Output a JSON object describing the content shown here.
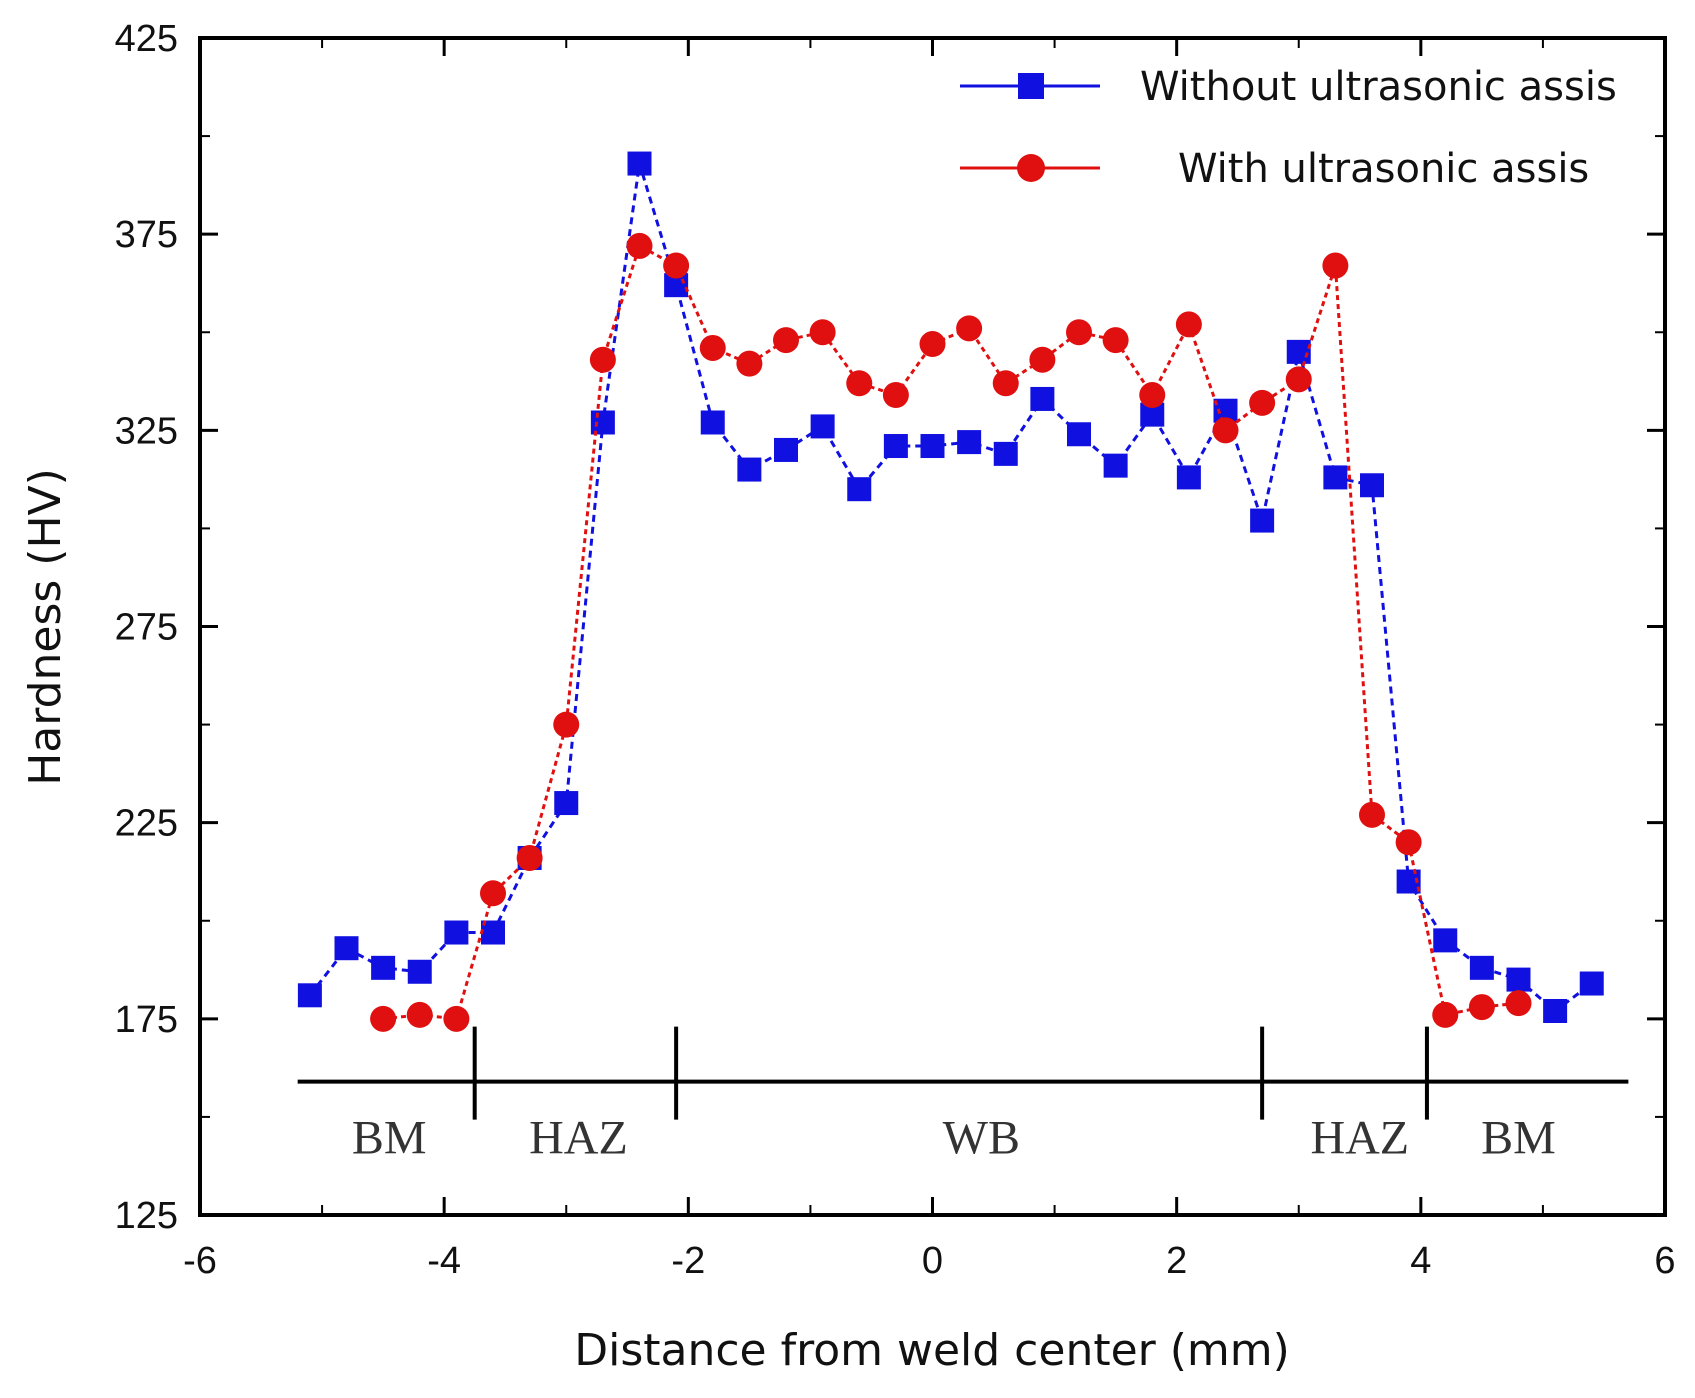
{
  "chart_data": {
    "type": "line",
    "title": "",
    "xlabel": "Distance from weld center (mm)",
    "ylabel": "Hardness (HV)",
    "xlim": [
      -6,
      6
    ],
    "ylim": [
      125,
      425
    ],
    "xticks": [
      -6,
      -4,
      -2,
      0,
      2,
      4,
      6
    ],
    "yticks": [
      125,
      175,
      225,
      275,
      325,
      375,
      425
    ],
    "xtick_labels": [
      "-6",
      "-4",
      "-2",
      "0",
      "2",
      "4",
      "6"
    ],
    "ytick_labels": [
      "125",
      "175",
      "225",
      "275",
      "325",
      "375",
      "425"
    ],
    "legend_position": "top-right",
    "series": [
      {
        "name": "Without ultrasonic assis",
        "color": "#1010e0",
        "marker": "square",
        "x": [
          -5.1,
          -4.8,
          -4.5,
          -4.2,
          -3.9,
          -3.6,
          -3.3,
          -3.0,
          -2.7,
          -2.4,
          -2.1,
          -1.8,
          -1.5,
          -1.2,
          -0.9,
          -0.6,
          -0.3,
          0.0,
          0.3,
          0.6,
          0.9,
          1.2,
          1.5,
          1.8,
          2.1,
          2.4,
          2.7,
          3.0,
          3.3,
          3.6,
          3.9,
          4.2,
          4.5,
          4.8,
          5.1,
          5.4
        ],
        "y": [
          181,
          193,
          188,
          187,
          197,
          197,
          216,
          230,
          327,
          393,
          362,
          327,
          315,
          320,
          326,
          310,
          321,
          321,
          322,
          319,
          333,
          324,
          316,
          329,
          313,
          330,
          302,
          345,
          313,
          311,
          210,
          195,
          188,
          185,
          177,
          184
        ]
      },
      {
        "name": "With ultrasonic assis",
        "color": "#e01010",
        "marker": "circle",
        "x": [
          -4.5,
          -4.2,
          -3.9,
          -3.6,
          -3.3,
          -3.0,
          -2.7,
          -2.4,
          -2.1,
          -1.8,
          -1.5,
          -1.2,
          -0.9,
          -0.6,
          -0.3,
          0.0,
          0.3,
          0.6,
          0.9,
          1.2,
          1.5,
          1.8,
          2.1,
          2.4,
          2.7,
          3.0,
          3.3,
          3.6,
          3.9,
          4.2,
          4.5,
          4.8
        ],
        "y": [
          175,
          176,
          175,
          207,
          216,
          250,
          343,
          372,
          367,
          346,
          342,
          348,
          350,
          337,
          334,
          347,
          351,
          337,
          343,
          350,
          348,
          334,
          352,
          325,
          332,
          338,
          367,
          227,
          220,
          176,
          178,
          179
        ]
      }
    ],
    "zones": {
      "y_value": 159,
      "boundaries": [
        -3.75,
        -2.1,
        2.7,
        4.05
      ],
      "labels": [
        {
          "text": "BM",
          "x": -4.45
        },
        {
          "text": "HAZ",
          "x": -2.9
        },
        {
          "text": "WB",
          "x": 0.4
        },
        {
          "text": "HAZ",
          "x": 3.5
        },
        {
          "text": "BM",
          "x": 4.8
        }
      ]
    }
  }
}
